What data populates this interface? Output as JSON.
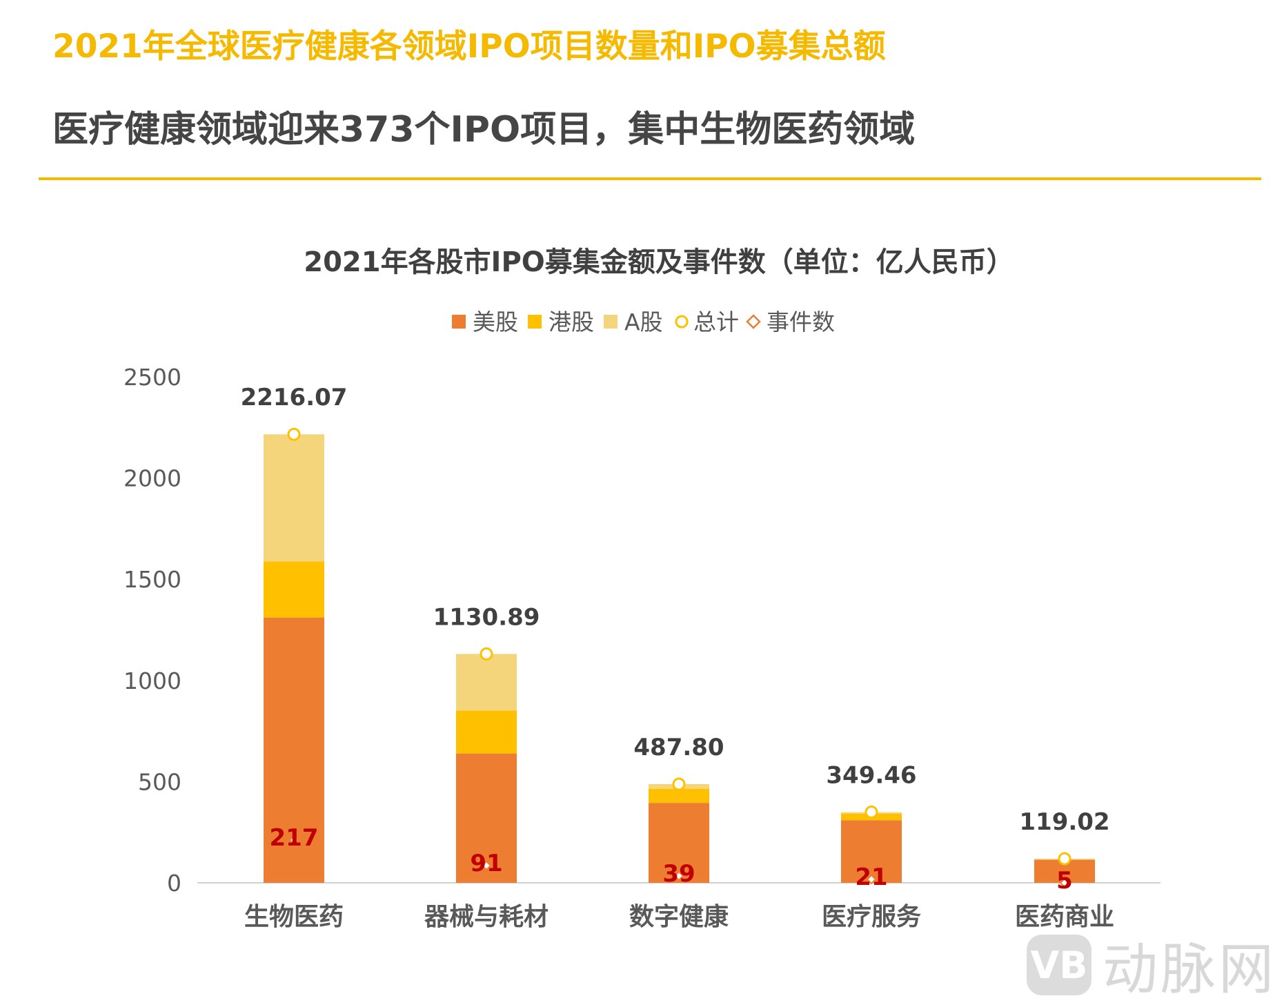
{
  "header": {
    "title": "2021年全球医疗健康各领域IPO项目数量和IPO募集总额",
    "subtitle": "医疗健康领域迎来373个IPO项目，集中生物医药领域"
  },
  "chart_data": {
    "type": "bar",
    "stacked": true,
    "title": "2021年各股市IPO募集金额及事件数（单位：亿人民币）",
    "categories": [
      "生物医药",
      "器械与耗材",
      "数字健康",
      "医疗服务",
      "医药商业"
    ],
    "series": [
      {
        "name": "美股",
        "color": "#ED7D31",
        "values": [
          1311,
          639,
          395,
          309,
          114
        ]
      },
      {
        "name": "港股",
        "color": "#FFC000",
        "values": [
          277,
          212,
          70,
          33,
          0
        ]
      },
      {
        "name": "A股",
        "color": "#F5D57C",
        "values": [
          628,
          280,
          23,
          7,
          5
        ]
      }
    ],
    "totals": {
      "name": "总计",
      "color": "#FFC000",
      "values": [
        2216.07,
        1130.89,
        487.8,
        349.46,
        119.02
      ],
      "labels": [
        "2216.07",
        "1130.89",
        "487.80",
        "349.46",
        "119.02"
      ]
    },
    "events": {
      "name": "事件数",
      "color": "#ED7D31",
      "label_color": "#C00000",
      "values": [
        217,
        91,
        39,
        21,
        5
      ]
    },
    "yticks": [
      0,
      500,
      1000,
      1500,
      2000,
      2500
    ],
    "ylim": [
      0,
      2500
    ],
    "legend_position": "top",
    "grid": false
  },
  "watermark": {
    "badge": "VB",
    "text": "动脉网"
  }
}
